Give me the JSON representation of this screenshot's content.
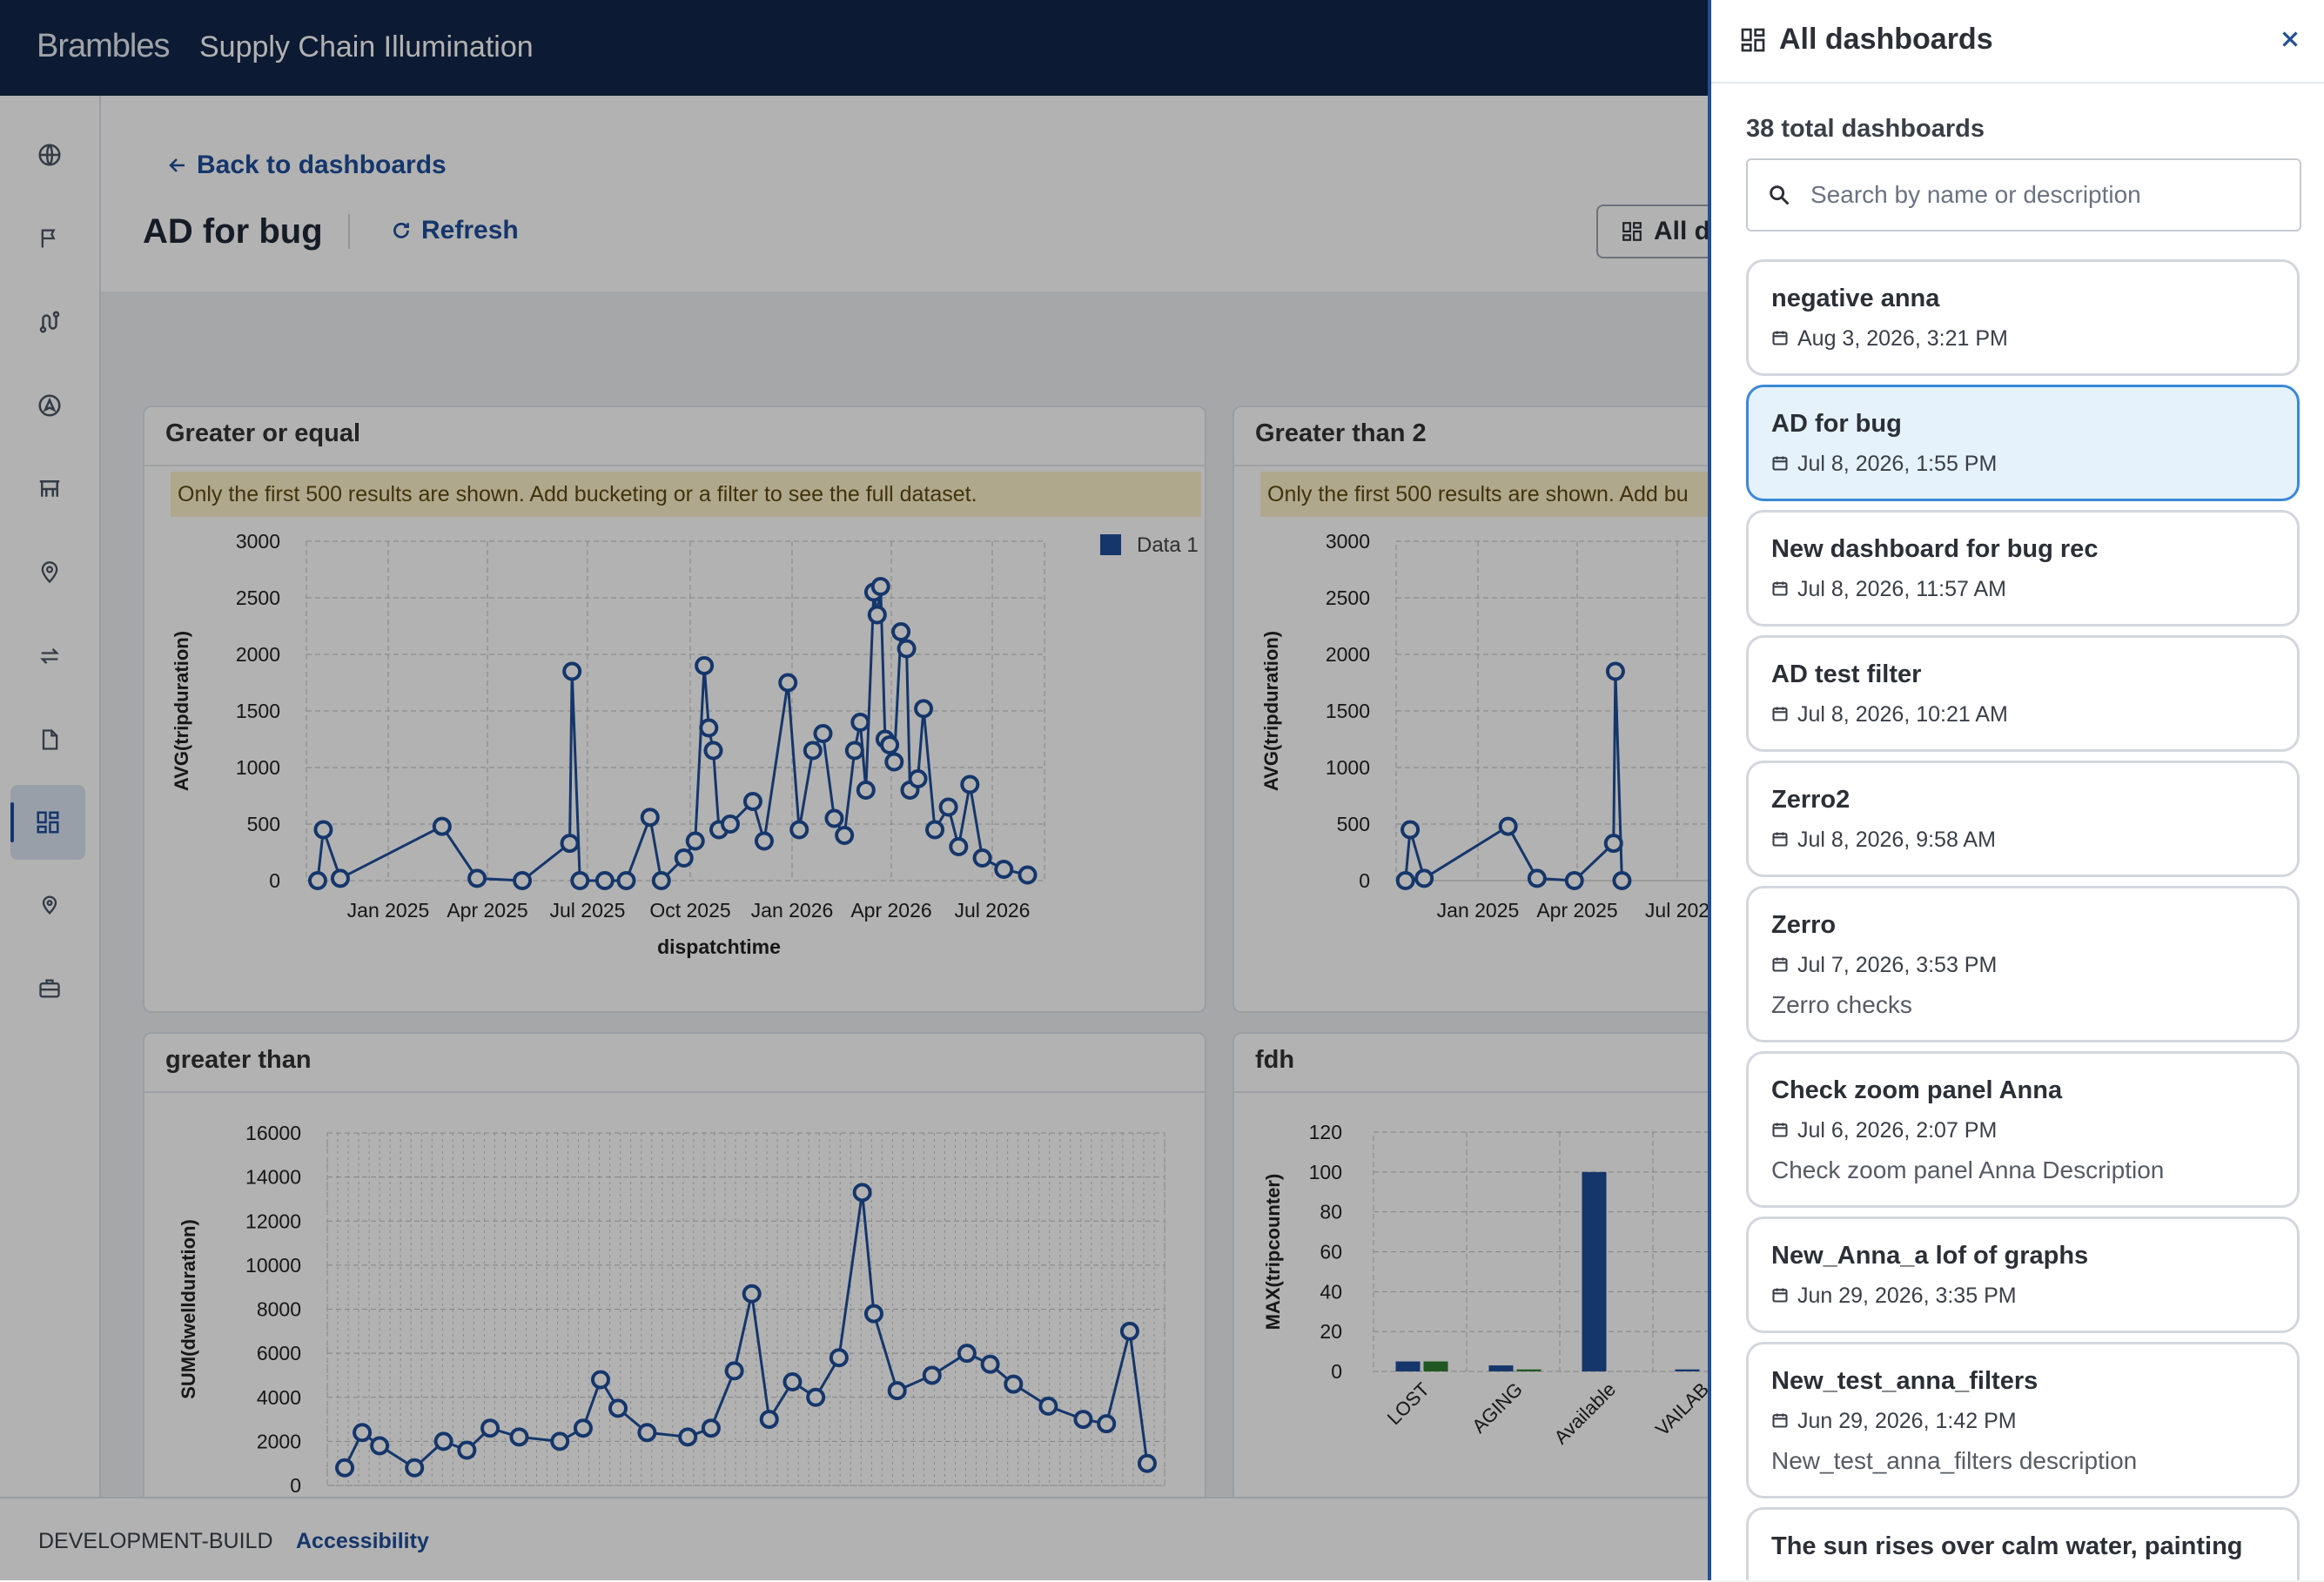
{
  "header": {
    "brand": "Brambles",
    "app_title": "Supply Chain Illumination"
  },
  "sidebar": {
    "icons": [
      "globe-icon",
      "flag-icon",
      "route-icon",
      "navigation-icon",
      "warehouse-icon",
      "location-pin-icon",
      "transfer-icon",
      "document-icon",
      "dashboard-icon",
      "map-pin-icon",
      "briefcase-icon"
    ],
    "active_index": 8
  },
  "page": {
    "back_label": "Back to dashboards",
    "title": "AD for bug",
    "refresh_label": "Refresh",
    "all_dashboards_button": "All d"
  },
  "panels": {
    "p1": {
      "title": "Greater or equal",
      "warning": "Only the first 500 results are shown. Add bucketing or a filter to see the full dataset."
    },
    "p2": {
      "title": "Greater than 2",
      "warning": "Only the first 500 results are shown. Add bu"
    },
    "p3": {
      "title": "greater than"
    },
    "p4": {
      "title": "fdh"
    }
  },
  "chart_data": [
    {
      "type": "line",
      "title": "Greater or equal",
      "xlabel": "dispatchtime",
      "ylabel": "AVG(tripduration)",
      "ylim": [
        0,
        3000
      ],
      "yticks": [
        "0",
        "500",
        "1000",
        "1500",
        "2000",
        "2500",
        "3000"
      ],
      "xticks": [
        "Jan 2025",
        "Apr 2025",
        "Jul 2025",
        "Oct 2025",
        "Jan 2026",
        "Apr 2026",
        "Jul 2026"
      ],
      "legend": "top-right",
      "grid": true,
      "series": [
        {
          "name": "Data 1",
          "color": "#1f4e9a",
          "points": [
            [
              "2024-11-20",
              0
            ],
            [
              "2024-11-25",
              450
            ],
            [
              "2024-12-10",
              20
            ],
            [
              "2025-03-10",
              480
            ],
            [
              "2025-04-10",
              20
            ],
            [
              "2025-05-20",
              0
            ],
            [
              "2025-07-01",
              330
            ],
            [
              "2025-07-03",
              1850
            ],
            [
              "2025-07-10",
              0
            ],
            [
              "2025-08-01",
              0
            ],
            [
              "2025-08-20",
              0
            ],
            [
              "2025-09-10",
              560
            ],
            [
              "2025-09-20",
              0
            ],
            [
              "2025-10-10",
              200
            ],
            [
              "2025-10-20",
              350
            ],
            [
              "2025-10-28",
              1900
            ],
            [
              "2025-11-01",
              1350
            ],
            [
              "2025-11-05",
              1150
            ],
            [
              "2025-11-10",
              450
            ],
            [
              "2025-11-20",
              500
            ],
            [
              "2025-12-10",
              700
            ],
            [
              "2025-12-20",
              350
            ],
            [
              "2026-01-10",
              1750
            ],
            [
              "2026-01-20",
              450
            ],
            [
              "2026-02-01",
              1150
            ],
            [
              "2026-02-10",
              1300
            ],
            [
              "2026-02-20",
              550
            ],
            [
              "2026-03-01",
              400
            ],
            [
              "2026-03-10",
              1150
            ],
            [
              "2026-03-15",
              1400
            ],
            [
              "2026-03-20",
              800
            ],
            [
              "2026-03-27",
              2550
            ],
            [
              "2026-03-30",
              2350
            ],
            [
              "2026-04-02",
              2600
            ],
            [
              "2026-04-06",
              1250
            ],
            [
              "2026-04-10",
              1200
            ],
            [
              "2026-04-14",
              1050
            ],
            [
              "2026-04-20",
              2200
            ],
            [
              "2026-04-25",
              2050
            ],
            [
              "2026-04-28",
              800
            ],
            [
              "2026-05-05",
              900
            ],
            [
              "2026-05-10",
              1520
            ],
            [
              "2026-05-20",
              450
            ],
            [
              "2026-06-01",
              650
            ],
            [
              "2026-06-10",
              300
            ],
            [
              "2026-06-20",
              850
            ],
            [
              "2026-07-01",
              200
            ],
            [
              "2026-07-20",
              100
            ],
            [
              "2026-08-10",
              50
            ]
          ]
        }
      ]
    },
    {
      "type": "line",
      "title": "Greater than 2",
      "ylabel": "AVG(tripduration)",
      "ylim": [
        0,
        3000
      ],
      "yticks": [
        "0",
        "500",
        "1000",
        "1500",
        "2000",
        "2500",
        "3000"
      ],
      "xticks": [
        "Jan 2025",
        "Apr 2025",
        "Jul 202"
      ],
      "grid": true,
      "series": [
        {
          "name": "",
          "color": "#1f4e9a",
          "points": [
            [
              "2024-11-20",
              0
            ],
            [
              "2024-11-25",
              450
            ],
            [
              "2024-12-10",
              20
            ],
            [
              "2025-03-10",
              480
            ],
            [
              "2025-04-10",
              20
            ],
            [
              "2025-05-20",
              0
            ],
            [
              "2025-07-01",
              330
            ],
            [
              "2025-07-03",
              1850
            ],
            [
              "2025-07-10",
              0
            ]
          ]
        }
      ]
    },
    {
      "type": "line",
      "title": "greater than",
      "ylabel": "SUM(dwellduration)",
      "ylim": [
        0,
        16000
      ],
      "yticks": [
        "0",
        "2000",
        "4000",
        "6000",
        "8000",
        "10000",
        "12000",
        "14000",
        "16000"
      ],
      "grid": true,
      "series": [
        {
          "name": "",
          "color": "#1f4e9a",
          "points": [
            [
              3,
              800
            ],
            [
              6,
              2400
            ],
            [
              9,
              1800
            ],
            [
              15,
              800
            ],
            [
              20,
              2000
            ],
            [
              24,
              1600
            ],
            [
              28,
              2600
            ],
            [
              33,
              2200
            ],
            [
              40,
              2000
            ],
            [
              44,
              2600
            ],
            [
              47,
              4800
            ],
            [
              50,
              3500
            ],
            [
              55,
              2400
            ],
            [
              62,
              2200
            ],
            [
              66,
              2600
            ],
            [
              70,
              5200
            ],
            [
              73,
              8700
            ],
            [
              76,
              3000
            ],
            [
              80,
              4700
            ],
            [
              84,
              4000
            ],
            [
              88,
              5800
            ],
            [
              92,
              13300
            ],
            [
              94,
              7800
            ],
            [
              98,
              4300
            ],
            [
              104,
              5000
            ],
            [
              110,
              6000
            ],
            [
              114,
              5500
            ],
            [
              118,
              4600
            ],
            [
              124,
              3600
            ],
            [
              130,
              3000
            ],
            [
              134,
              2800
            ],
            [
              138,
              7000
            ],
            [
              141,
              1000
            ]
          ]
        }
      ]
    },
    {
      "type": "bar",
      "title": "fdh",
      "ylabel": "MAX(tripcounter)",
      "ylim": [
        0,
        120
      ],
      "yticks": [
        "0",
        "20",
        "40",
        "60",
        "80",
        "100",
        "120"
      ],
      "categories": [
        "LOST",
        "AGING",
        "Available",
        "VAILAB"
      ],
      "series": [
        {
          "name": "",
          "color": "#1f4e9a",
          "values": [
            5,
            3,
            100,
            1
          ]
        },
        {
          "name": "",
          "color": "#2e7d32",
          "values": [
            5,
            1,
            0,
            0
          ]
        }
      ]
    }
  ],
  "footer": {
    "build": "DEVELOPMENT-BUILD",
    "accessibility": "Accessibility"
  },
  "drawer": {
    "title": "All dashboards",
    "total": "38 total dashboards",
    "search_placeholder": "Search by name or description",
    "items": [
      {
        "name": "negative anna",
        "date": "Aug 3, 2026, 3:21 PM",
        "desc": ""
      },
      {
        "name": "AD for bug",
        "date": "Jul 8, 2026, 1:55 PM",
        "desc": ""
      },
      {
        "name": "New dashboard for bug rec",
        "date": "Jul 8, 2026, 11:57 AM",
        "desc": ""
      },
      {
        "name": "AD test filter",
        "date": "Jul 8, 2026, 10:21 AM",
        "desc": ""
      },
      {
        "name": "Zerro2",
        "date": "Jul 8, 2026, 9:58 AM",
        "desc": ""
      },
      {
        "name": "Zerro",
        "date": "Jul 7, 2026, 3:53 PM",
        "desc": "Zerro checks"
      },
      {
        "name": "Check zoom panel Anna",
        "date": "Jul 6, 2026, 2:07 PM",
        "desc": "Check zoom panel Anna Description"
      },
      {
        "name": "New_Anna_a lof of graphs",
        "date": "Jun 29, 2026, 3:35 PM",
        "desc": ""
      },
      {
        "name": "New_test_anna_filters",
        "date": "Jun 29, 2026, 1:42 PM",
        "desc": "New_test_anna_filters description"
      },
      {
        "name": "The sun rises over calm water, painting",
        "date": "",
        "desc": ""
      }
    ],
    "selected_index": 1
  }
}
